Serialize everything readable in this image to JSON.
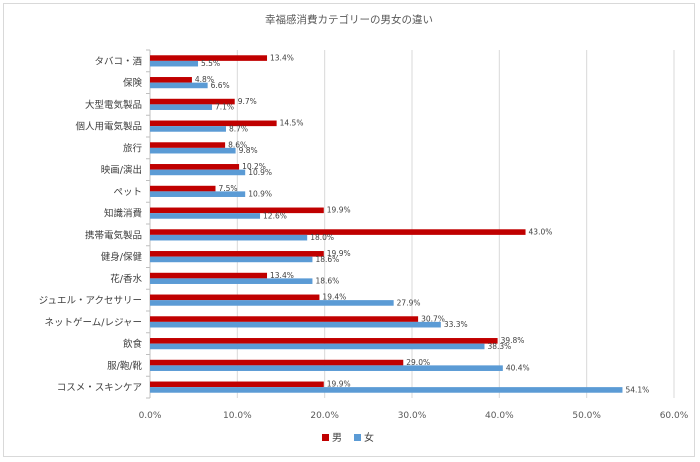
{
  "chart_data": {
    "type": "bar",
    "orientation": "horizontal",
    "title": "幸福感消費カテゴリーの男女の違い",
    "xlabel": "",
    "ylabel": "",
    "xlim": [
      0,
      60
    ],
    "x_ticks": [
      "0.0%",
      "10.0%",
      "20.0%",
      "30.0%",
      "40.0%",
      "50.0%",
      "60.0%"
    ],
    "grid": true,
    "legend_position": "bottom",
    "categories": [
      "タバコ・酒",
      "保険",
      "大型電気製品",
      "個人用電気製品",
      "旅行",
      "映画/演出",
      "ペット",
      "知識消費",
      "携帯電気製品",
      "健身/保健",
      "花/香水",
      "ジュエル・アクセサリー",
      "ネットゲーム/レジャー",
      "飲食",
      "服/鞄/靴",
      "コスメ・スキンケア"
    ],
    "series": [
      {
        "name": "男",
        "color": "#c00000",
        "values": [
          13.4,
          4.8,
          9.7,
          14.5,
          8.6,
          10.2,
          7.5,
          19.9,
          43.0,
          19.9,
          13.4,
          19.4,
          30.7,
          39.8,
          29.0,
          19.9
        ],
        "labels": [
          "13.4%",
          "4.8%",
          "9.7%",
          "14.5%",
          "8.6%",
          "10.2%",
          "7.5%",
          "19.9%",
          "43.0%",
          "19.9%",
          "13.4%",
          "19.4%",
          "30.7%",
          "39.8%",
          "29.0%",
          "19.9%"
        ]
      },
      {
        "name": "女",
        "color": "#5b9bd5",
        "values": [
          5.5,
          6.6,
          7.1,
          8.7,
          9.8,
          10.9,
          10.9,
          12.6,
          18.0,
          18.6,
          18.6,
          27.9,
          33.3,
          38.3,
          40.4,
          54.1
        ],
        "labels": [
          "5.5%",
          "6.6%",
          "7.1%",
          "8.7%",
          "9.8%",
          "10.9%",
          "10.9%",
          "12.6%",
          "18.0%",
          "18.6%",
          "18.6%",
          "27.9%",
          "33.3%",
          "38.3%",
          "40.4%",
          "54.1%"
        ]
      }
    ]
  }
}
